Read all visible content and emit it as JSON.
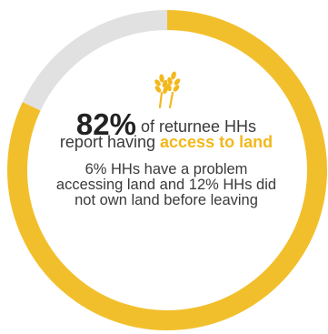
{
  "chart_data": {
    "type": "pie",
    "style": "donut",
    "slices": [
      {
        "value": 82,
        "color": "#f2bf2c"
      },
      {
        "value": 18,
        "color": "#e1e1e1"
      }
    ],
    "headline": {
      "value": "82%",
      "text_before": "of returnee HHs report having",
      "highlight": "access to land"
    },
    "annotation": "6% HHs have a problem accessing land and 12% HHs did not own land before leaving"
  },
  "icon": "wheat-icon",
  "colors": {
    "accent": "#f2b81c",
    "ring": "#f2bf2c",
    "ring_rest": "#e1e1e1",
    "text": "#3a3a3a"
  }
}
